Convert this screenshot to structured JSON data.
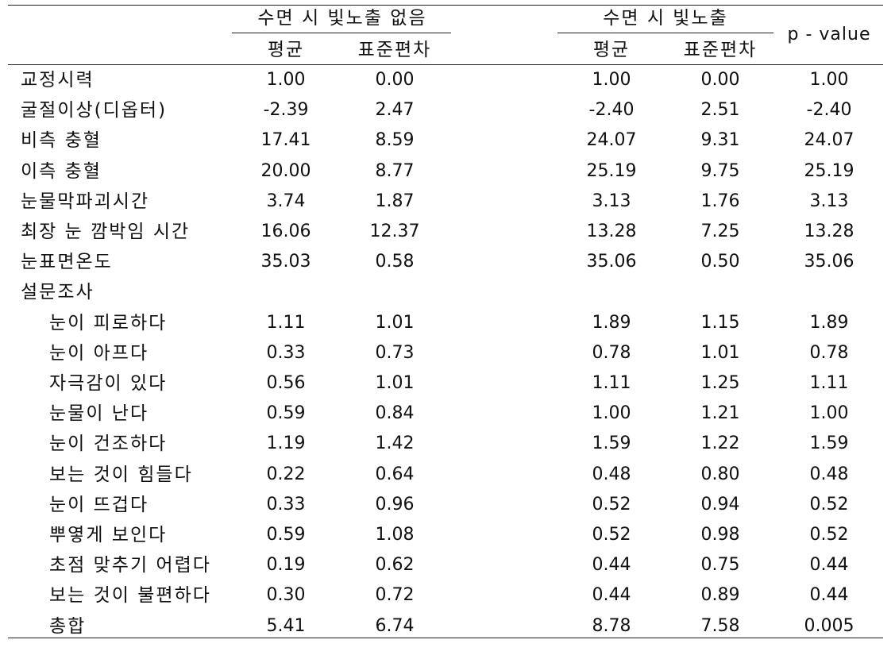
{
  "header": {
    "group_no_light": "수면 시 빛노출 없음",
    "group_light": "수면 시 빛노출",
    "mean": "평균",
    "sd": "표준편차",
    "pvalue": "p - value"
  },
  "rows": [
    {
      "label": "교정시력",
      "indent": false,
      "m1": "1.00",
      "s1": "0.00",
      "m2": "1.00",
      "s2": "0.00",
      "p": "1.00"
    },
    {
      "label": "굴절이상(디옵터)",
      "indent": false,
      "m1": "-2.39",
      "s1": "2.47",
      "m2": "-2.40",
      "s2": "2.51",
      "p": "-2.40"
    },
    {
      "label": "비측 충혈",
      "indent": false,
      "m1": "17.41",
      "s1": "8.59",
      "m2": "24.07",
      "s2": "9.31",
      "p": "24.07"
    },
    {
      "label": "이측 충혈",
      "indent": false,
      "m1": "20.00",
      "s1": "8.77",
      "m2": "25.19",
      "s2": "9.75",
      "p": "25.19"
    },
    {
      "label": "눈물막파괴시간",
      "indent": false,
      "m1": "3.74",
      "s1": "1.87",
      "m2": "3.13",
      "s2": "1.76",
      "p": "3.13"
    },
    {
      "label": "최장 눈 깜박임 시간",
      "indent": false,
      "m1": "16.06",
      "s1": "12.37",
      "m2": "13.28",
      "s2": "7.25",
      "p": "13.28"
    },
    {
      "label": "눈표면온도",
      "indent": false,
      "m1": "35.03",
      "s1": "0.58",
      "m2": "35.06",
      "s2": "0.50",
      "p": "35.06"
    },
    {
      "label": "설문조사",
      "indent": false,
      "m1": "",
      "s1": "",
      "m2": "",
      "s2": "",
      "p": ""
    },
    {
      "label": "눈이 피로하다",
      "indent": true,
      "m1": "1.11",
      "s1": "1.01",
      "m2": "1.89",
      "s2": "1.15",
      "p": "1.89"
    },
    {
      "label": "눈이 아프다",
      "indent": true,
      "m1": "0.33",
      "s1": "0.73",
      "m2": "0.78",
      "s2": "1.01",
      "p": "0.78"
    },
    {
      "label": "자극감이 있다",
      "indent": true,
      "m1": "0.56",
      "s1": "1.01",
      "m2": "1.11",
      "s2": "1.25",
      "p": "1.11"
    },
    {
      "label": "눈물이 난다",
      "indent": true,
      "m1": "0.59",
      "s1": "0.84",
      "m2": "1.00",
      "s2": "1.21",
      "p": "1.00"
    },
    {
      "label": "눈이 건조하다",
      "indent": true,
      "m1": "1.19",
      "s1": "1.42",
      "m2": "1.59",
      "s2": "1.22",
      "p": "1.59"
    },
    {
      "label": "보는 것이 힘들다",
      "indent": true,
      "m1": "0.22",
      "s1": "0.64",
      "m2": "0.48",
      "s2": "0.80",
      "p": "0.48"
    },
    {
      "label": "눈이 뜨겁다",
      "indent": true,
      "m1": "0.33",
      "s1": "0.96",
      "m2": "0.52",
      "s2": "0.94",
      "p": "0.52"
    },
    {
      "label": "뿌옇게 보인다",
      "indent": true,
      "m1": "0.59",
      "s1": "1.08",
      "m2": "0.52",
      "s2": "0.98",
      "p": "0.52"
    },
    {
      "label": "초점 맞추기 어렵다",
      "indent": true,
      "m1": "0.19",
      "s1": "0.62",
      "m2": "0.44",
      "s2": "0.75",
      "p": "0.44"
    },
    {
      "label": "보는 것이 불편하다",
      "indent": true,
      "m1": "0.30",
      "s1": "0.72",
      "m2": "0.44",
      "s2": "0.89",
      "p": "0.44"
    },
    {
      "label": "총합",
      "indent": true,
      "m1": "5.41",
      "s1": "6.74",
      "m2": "8.78",
      "s2": "7.58",
      "p": "0.005"
    }
  ]
}
